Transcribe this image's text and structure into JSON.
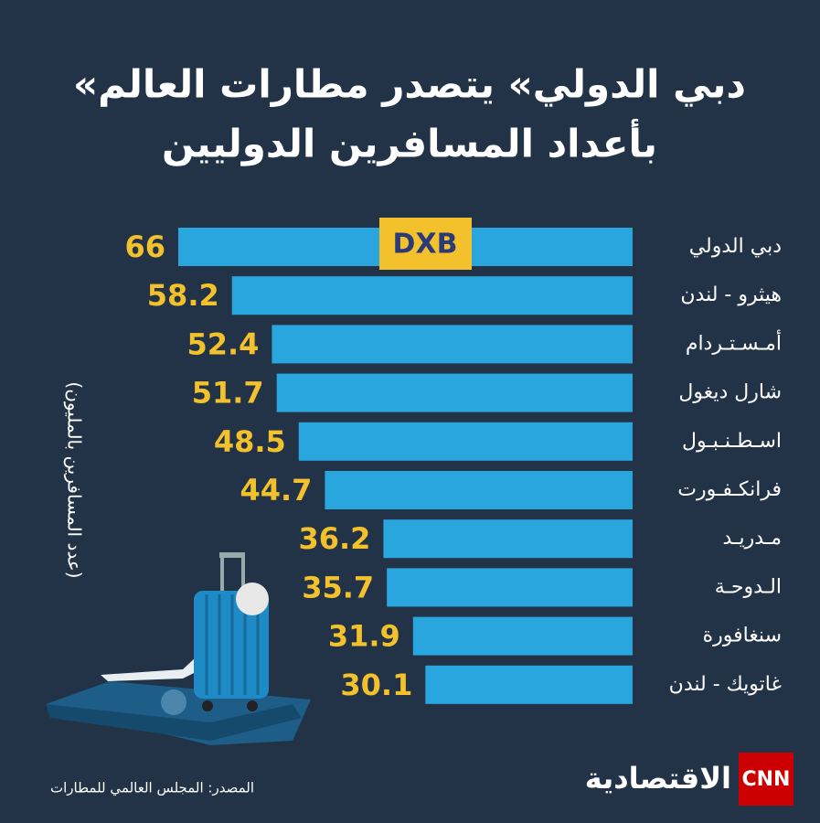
{
  "chart_data": {
    "type": "bar",
    "orientation": "horizontal",
    "title": [
      "«دبي الدولي» يتصدر مطارات العالم",
      "بأعداد المسافرين الدوليين"
    ],
    "axis_label": "(عدد المسافرين بالمليون)",
    "categories": [
      "دبي الدولي",
      "هيثرو - لندن",
      "أمـسـتـردام",
      "شارل ديغول",
      "اسـطـنـبـول",
      "فرانكـفـورت",
      "مـدريـد",
      "الـدوحـة",
      "سنغافورة",
      "غاتويك - لندن"
    ],
    "values": [
      66,
      58.2,
      52.4,
      51.7,
      48.5,
      44.7,
      36.2,
      35.7,
      31.9,
      30.1
    ],
    "color": "#2aa6df",
    "value_label_color": "#f3c12c",
    "badge": "DXB",
    "source": "المصدر: المجلس العالمي للمطارات",
    "brand": [
      "CNN",
      "الاقتصادية"
    ]
  }
}
